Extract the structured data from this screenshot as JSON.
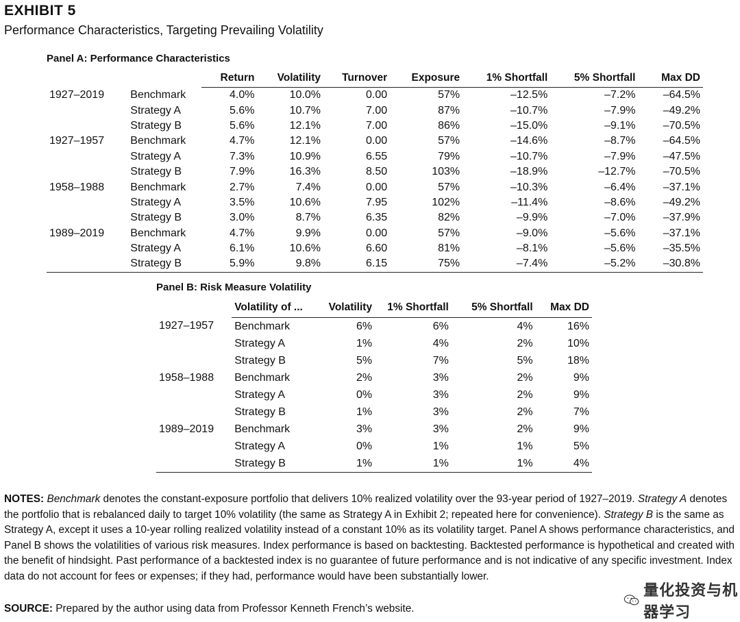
{
  "exhibit": {
    "title": "EXHIBIT 5",
    "subtitle": "Performance Characteristics, Targeting Prevailing Volatility"
  },
  "panelA": {
    "title": "Panel A: Performance Characteristics",
    "headers": [
      "Return",
      "Volatility",
      "Turnover",
      "Exposure",
      "1% Shortfall",
      "5% Shortfall",
      "Max DD"
    ],
    "rows": [
      {
        "period": "1927–2019",
        "label": "Benchmark",
        "values": [
          "4.0%",
          "10.0%",
          "0.00",
          "57%",
          "–12.5%",
          "–7.2%",
          "–64.5%"
        ]
      },
      {
        "period": "",
        "label": "Strategy A",
        "values": [
          "5.6%",
          "10.7%",
          "7.00",
          "87%",
          "–10.7%",
          "–7.9%",
          "–49.2%"
        ]
      },
      {
        "period": "",
        "label": "Strategy B",
        "values": [
          "5.6%",
          "12.1%",
          "7.00",
          "86%",
          "–15.0%",
          "–9.1%",
          "–70.5%"
        ]
      },
      {
        "period": "1927–1957",
        "label": "Benchmark",
        "values": [
          "4.7%",
          "12.1%",
          "0.00",
          "57%",
          "–14.6%",
          "–8.7%",
          "–64.5%"
        ]
      },
      {
        "period": "",
        "label": "Strategy A",
        "values": [
          "7.3%",
          "10.9%",
          "6.55",
          "79%",
          "–10.7%",
          "–7.9%",
          "–47.5%"
        ]
      },
      {
        "period": "",
        "label": "Strategy B",
        "values": [
          "7.9%",
          "16.3%",
          "8.50",
          "103%",
          "–18.9%",
          "–12.7%",
          "–70.5%"
        ]
      },
      {
        "period": "1958–1988",
        "label": "Benchmark",
        "values": [
          "2.7%",
          "7.4%",
          "0.00",
          "57%",
          "–10.3%",
          "–6.4%",
          "–37.1%"
        ]
      },
      {
        "period": "",
        "label": "Strategy A",
        "values": [
          "3.5%",
          "10.6%",
          "7.95",
          "102%",
          "–11.4%",
          "–8.6%",
          "–49.2%"
        ]
      },
      {
        "period": "",
        "label": "Strategy B",
        "values": [
          "3.0%",
          "8.7%",
          "6.35",
          "82%",
          "–9.9%",
          "–7.0%",
          "–37.9%"
        ]
      },
      {
        "period": "1989–2019",
        "label": "Benchmark",
        "values": [
          "4.7%",
          "9.9%",
          "0.00",
          "57%",
          "–9.0%",
          "–5.6%",
          "–37.1%"
        ]
      },
      {
        "period": "",
        "label": "Strategy A",
        "values": [
          "6.1%",
          "10.6%",
          "6.60",
          "81%",
          "–8.1%",
          "–5.6%",
          "–35.5%"
        ]
      },
      {
        "period": "",
        "label": "Strategy B",
        "values": [
          "5.9%",
          "9.8%",
          "6.15",
          "75%",
          "–7.4%",
          "–5.2%",
          "–30.8%"
        ]
      }
    ]
  },
  "panelB": {
    "title": "Panel B: Risk Measure Volatility",
    "label_header": "Volatility of ...",
    "headers": [
      "Volatility",
      "1% Shortfall",
      "5% Shortfall",
      "Max DD"
    ],
    "rows": [
      {
        "period": "1927–1957",
        "label": "Benchmark",
        "values": [
          "6%",
          "6%",
          "4%",
          "16%"
        ]
      },
      {
        "period": "",
        "label": "Strategy A",
        "values": [
          "1%",
          "4%",
          "2%",
          "10%"
        ]
      },
      {
        "period": "",
        "label": "Strategy B",
        "values": [
          "5%",
          "7%",
          "5%",
          "18%"
        ]
      },
      {
        "period": "1958–1988",
        "label": "Benchmark",
        "values": [
          "2%",
          "3%",
          "2%",
          "9%"
        ]
      },
      {
        "period": "",
        "label": "Strategy A",
        "values": [
          "0%",
          "3%",
          "2%",
          "9%"
        ]
      },
      {
        "period": "",
        "label": "Strategy B",
        "values": [
          "1%",
          "3%",
          "2%",
          "7%"
        ]
      },
      {
        "period": "1989–2019",
        "label": "Benchmark",
        "values": [
          "3%",
          "3%",
          "2%",
          "9%"
        ]
      },
      {
        "period": "",
        "label": "Strategy A",
        "values": [
          "0%",
          "1%",
          "1%",
          "5%"
        ]
      },
      {
        "period": "",
        "label": "Strategy B",
        "values": [
          "1%",
          "1%",
          "1%",
          "4%"
        ]
      }
    ]
  },
  "notes": {
    "label": "NOTES:",
    "benchmark_term": "Benchmark",
    "text1": " denotes the constant-exposure portfolio that delivers 10% realized volatility over the 93-year period of 1927–2019.",
    "strategyA_term": "Strategy A",
    "text2": " denotes the portfolio that is rebalanced daily to target 10% volatility (the same as Strategy A in Exhibit 2; repeated here for convenience). ",
    "strategyB_term": "Strategy B",
    "text3": " is the same as Strategy A, except it uses a 10-year rolling realized volatility instead of a constant 10% as its volatility target. Panel A shows performance characteristics, and Panel B shows the volatilities of various risk measures. Index performance is based on backtesting. Backtested performance is hypothetical and created with the benefit of hindsight. Past performance of a backtested index is no guarantee of future performance and is not indicative of any specific investment. Index data do not account for fees or expenses; if they had, performance would have been substantially lower."
  },
  "source": {
    "label": "SOURCE:",
    "text": " Prepared by the author using data from Professor Kenneth French’s website."
  },
  "watermark": {
    "icon": "wechat-icon",
    "text": "量化投资与机器学习"
  }
}
